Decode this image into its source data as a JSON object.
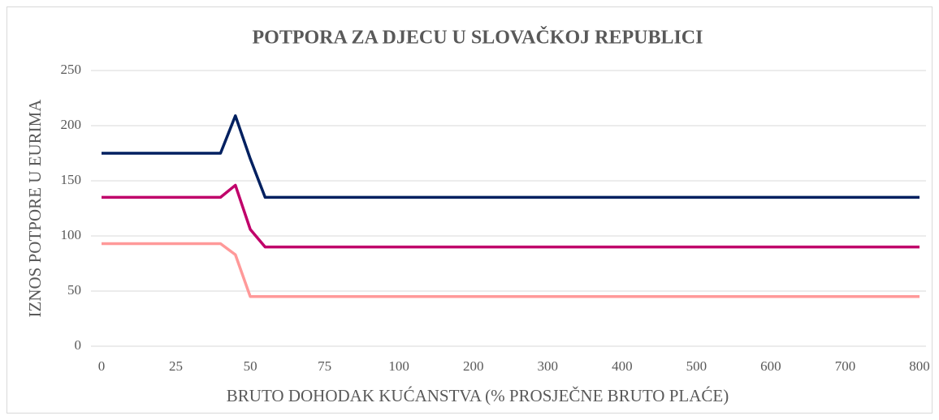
{
  "chart_data": {
    "type": "line",
    "title": "POTPORA ZA DJECU U SLOVAČKOJ REPUBLICI",
    "x_label": "BRUTO DOHODAK KUĆANSTVA (% PROSJEČNE BRUTO PLAĆE)",
    "y_label": "IZNOS POTPORE U EURIMA",
    "categories": [
      0,
      null,
      null,
      null,
      null,
      25,
      null,
      null,
      null,
      null,
      50,
      null,
      null,
      null,
      null,
      75,
      null,
      null,
      null,
      null,
      100,
      null,
      null,
      null,
      null,
      200,
      null,
      null,
      null,
      null,
      300,
      null,
      null,
      null,
      null,
      400,
      null,
      null,
      null,
      null,
      500,
      null,
      null,
      null,
      null,
      600,
      null,
      null,
      null,
      null,
      700,
      null,
      null,
      null,
      null,
      800
    ],
    "series": [
      {
        "color": "#002060",
        "values": [
          175,
          175,
          175,
          175,
          175,
          175,
          175,
          175,
          175,
          209,
          170,
          135,
          135,
          135,
          135,
          135,
          135,
          135,
          135,
          135,
          135,
          135,
          135,
          135,
          135,
          135,
          135,
          135,
          135,
          135,
          135,
          135,
          135,
          135,
          135,
          135,
          135,
          135,
          135,
          135,
          135,
          135,
          135,
          135,
          135,
          135,
          135,
          135,
          135,
          135,
          135,
          135,
          135,
          135,
          135,
          135
        ]
      },
      {
        "color": "#c0006a",
        "values": [
          135,
          135,
          135,
          135,
          135,
          135,
          135,
          135,
          135,
          146,
          106,
          90,
          90,
          90,
          90,
          90,
          90,
          90,
          90,
          90,
          90,
          90,
          90,
          90,
          90,
          90,
          90,
          90,
          90,
          90,
          90,
          90,
          90,
          90,
          90,
          90,
          90,
          90,
          90,
          90,
          90,
          90,
          90,
          90,
          90,
          90,
          90,
          90,
          90,
          90,
          90,
          90,
          90,
          90,
          90,
          90
        ]
      },
      {
        "color": "#ff9999",
        "values": [
          93,
          93,
          93,
          93,
          93,
          93,
          93,
          93,
          93,
          83,
          45,
          45,
          45,
          45,
          45,
          45,
          45,
          45,
          45,
          45,
          45,
          45,
          45,
          45,
          45,
          45,
          45,
          45,
          45,
          45,
          45,
          45,
          45,
          45,
          45,
          45,
          45,
          45,
          45,
          45,
          45,
          45,
          45,
          45,
          45,
          45,
          45,
          45,
          45,
          45,
          45,
          45,
          45,
          45,
          45,
          45
        ]
      }
    ],
    "ylim": [
      0,
      250
    ],
    "yticks": [
      0,
      50,
      100,
      150,
      200,
      250
    ],
    "grid": true
  }
}
